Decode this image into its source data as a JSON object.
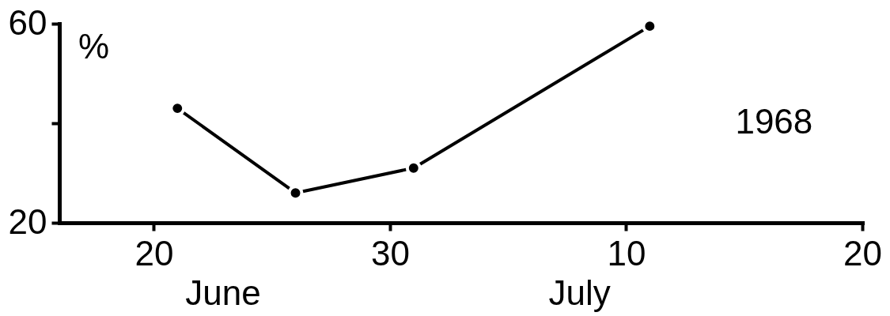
{
  "chart_data": {
    "type": "line",
    "ylabel": "%",
    "annotations": [
      "June",
      "July",
      "1968"
    ],
    "x": [
      "1968-06-21",
      "1968-06-26",
      "1968-07-01",
      "1968-07-11"
    ],
    "series": [
      {
        "color": "#000000",
        "values": [
          43,
          26,
          31,
          59.5
        ]
      }
    ],
    "xlim": [
      "1968-06-16",
      "1968-07-20"
    ],
    "xticks": [
      {
        "value": "1968-06-20",
        "label": "20"
      },
      {
        "value": "1968-06-30",
        "label": "30"
      },
      {
        "value": "1968-07-10",
        "label": "10"
      },
      {
        "value": "1968-07-20",
        "label": "20"
      }
    ],
    "ylim": [
      20,
      60
    ],
    "yticks": [
      20,
      {
        "value": 40,
        "label": null
      },
      60
    ],
    "marker": "circle",
    "line_style": "solid",
    "grid": false
  }
}
